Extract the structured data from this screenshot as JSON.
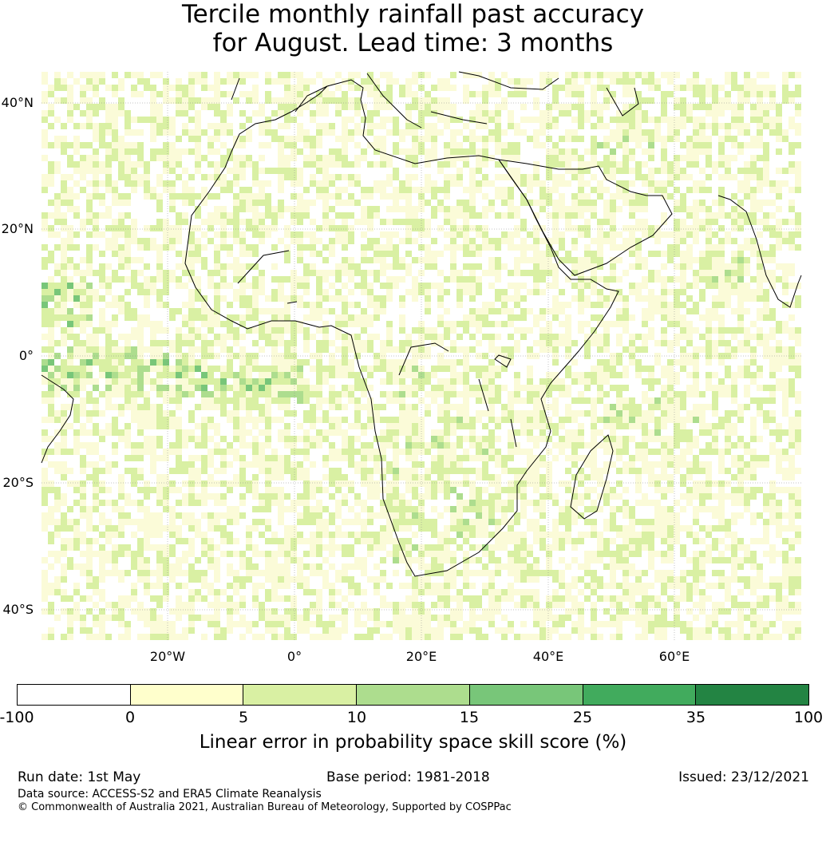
{
  "title_line1": "Tercile monthly rainfall past accuracy",
  "title_line2": "for August. Lead time: 3 months",
  "map": {
    "lat_labels": [
      "40°N",
      "20°N",
      "0°",
      "20°S",
      "40°S"
    ],
    "lon_labels": [
      "20°W",
      "0°",
      "20°E",
      "40°E",
      "60°E"
    ],
    "colors": {
      "land_outline": "#000000",
      "grid": "#888888"
    }
  },
  "legend": {
    "ticks": [
      "-100",
      "0",
      "5",
      "10",
      "15",
      "25",
      "35",
      "100"
    ],
    "colors": [
      "#ffffff",
      "#ffffcc",
      "#d9f0a3",
      "#addd8e",
      "#78c679",
      "#41ab5d",
      "#238443"
    ],
    "title": "Linear error in probability space skill score (%)"
  },
  "footer": {
    "run_date": "Run date: 1st May",
    "base_period": "Base period: 1981-2018",
    "issued": "Issued: 23/12/2021",
    "data_source": "Data source: ACCESS-S2 and ERA5 Climate Reanalysis",
    "copyright": "© Commonwealth of Australia 2021, Australian Bureau of Meteorology, Supported by COSPPac"
  }
}
